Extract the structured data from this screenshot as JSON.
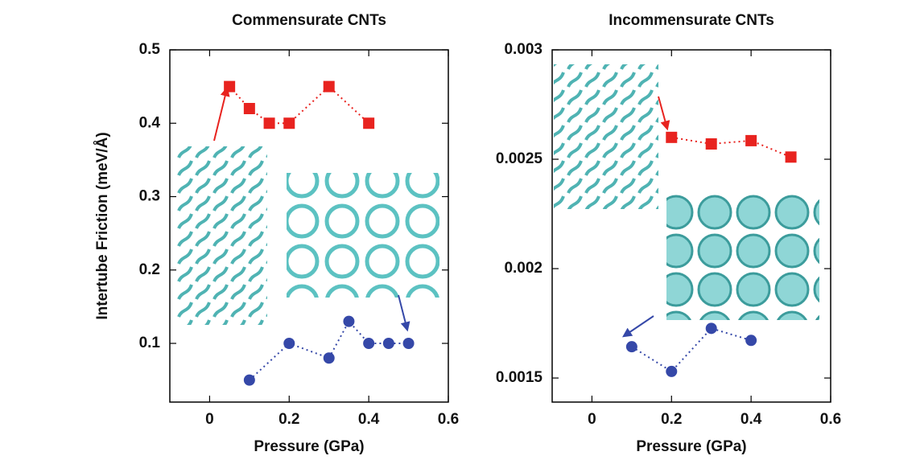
{
  "chart_data": [
    {
      "type": "scatter-line",
      "title": "Commensurate CNTs",
      "x_label": "Pressure (GPa)",
      "y_label": "Intertube Friction (meV/Å)",
      "xlim": [
        -0.1,
        0.6
      ],
      "xticks": [
        0,
        0.2,
        0.4,
        0.6
      ],
      "ylim": [
        0.02,
        0.5
      ],
      "yticks": [
        0.1,
        0.2,
        0.3,
        0.4,
        0.5
      ],
      "series": [
        {
          "color": "#e8231f",
          "marker": "square",
          "x": [
            0.05,
            0.1,
            0.15,
            0.2,
            0.3,
            0.4
          ],
          "values": [
            0.45,
            0.42,
            0.4,
            0.4,
            0.45,
            0.4
          ]
        },
        {
          "color": "#3548a8",
          "marker": "circle",
          "x": [
            0.1,
            0.2,
            0.3,
            0.35,
            0.4,
            0.45,
            0.5
          ],
          "values": [
            0.05,
            0.1,
            0.08,
            0.13,
            0.1,
            0.1,
            0.1
          ]
        }
      ]
    },
    {
      "type": "scatter-line",
      "title": "Incommensurate CNTs",
      "x_label": "Pressure (GPa)",
      "xlim": [
        -0.1,
        0.6
      ],
      "xticks": [
        0,
        0.2,
        0.4,
        0.6
      ],
      "ylim": [
        0.00139,
        0.003
      ],
      "yticks": [
        0.0015,
        0.002,
        0.0025,
        0.003
      ],
      "series": [
        {
          "color": "#e8231f",
          "marker": "square",
          "x": [
            0.2,
            0.3,
            0.4,
            0.5
          ],
          "values": [
            0.0026,
            0.00257,
            0.002585,
            0.00251
          ]
        },
        {
          "color": "#3548a8",
          "marker": "circle",
          "x": [
            0.1,
            0.2,
            0.3,
            0.4
          ],
          "values": [
            0.001643,
            0.00153,
            0.001727,
            0.001672
          ]
        }
      ]
    }
  ]
}
